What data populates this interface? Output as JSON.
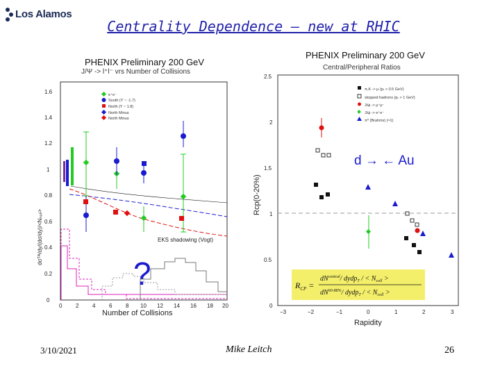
{
  "header": {
    "logo_text": "Los Alamos",
    "title": "Centrality Dependence – new at RHIC"
  },
  "left_panel": {
    "title": "PHENIX Preliminary  200 GeV",
    "subtitle": "J/Ψ -> l⁺l⁻ vrs Number of Collisions",
    "legend": [
      "e⁺e⁻",
      "South (Y ~ -1.7)",
      "North (Y ~ 1.8)",
      "North Minus",
      "North Minus"
    ],
    "annotation": "EKS shadowing (Vogt)",
    "question_mark": "?",
    "xlabel": "Number of Collisions",
    "ylabel": "dσᵀᴬ/dy/(dσ/dy)/<Nₙₒₗₗ>",
    "xticks": [
      "0",
      "2",
      "4",
      "6",
      "8",
      "10",
      "12",
      "14",
      "16",
      "18",
      "20"
    ],
    "yticks": [
      "0",
      "0.2",
      "0.4",
      "0.6",
      "0.8",
      "1",
      "1.2",
      "1.4",
      "1.6"
    ]
  },
  "right_panel": {
    "title": "PHENIX Preliminary  200 GeV",
    "subtitle": "Central/Peripheral Ratios",
    "legend": [
      "π,K -> μ (pₜ > 0.5 GeV)",
      "stopped hadrons (pₜ > 1 GeV)",
      "J/ψ -> μ⁺μ⁻",
      "J/ψ -> e⁺e⁻",
      "π⁰ (Brahms) (≈1)"
    ],
    "annotation": "d → ← Au",
    "xlabel": "Rapidity",
    "ylabel": "Rcp(0-20%)",
    "xticks": [
      "−3",
      "−2",
      "−1",
      "0",
      "1",
      "2",
      "3"
    ],
    "yticks": [
      "0",
      "0.5",
      "1",
      "1.5",
      "2",
      "2.5"
    ],
    "formula": {
      "lhs": "R",
      "lhs_sub": "CP",
      "num_top": "dN",
      "num_top_sup": "central",
      "num_rest": "/ dydp",
      "num_rest_sub": "T",
      "num_tail": " / < N",
      "num_tail_sub": "coll",
      "num_end": " >",
      "den_top": "dN",
      "den_top_sup": "60-88%",
      "den_rest": "/ dydp",
      "den_rest_sub": "T",
      "den_tail": " / < N",
      "den_tail_sub": "coll",
      "den_end": " >"
    }
  },
  "footer": {
    "date": "3/10/2021",
    "author": "Mike Leitch",
    "page_number": "26"
  },
  "colors": {
    "title": "#1f1faa",
    "green": "#22cc22",
    "blue": "#1a1ad0",
    "red": "#e01010",
    "magenta": "#dd22bb",
    "formula_bg": "#f4ef6a"
  }
}
